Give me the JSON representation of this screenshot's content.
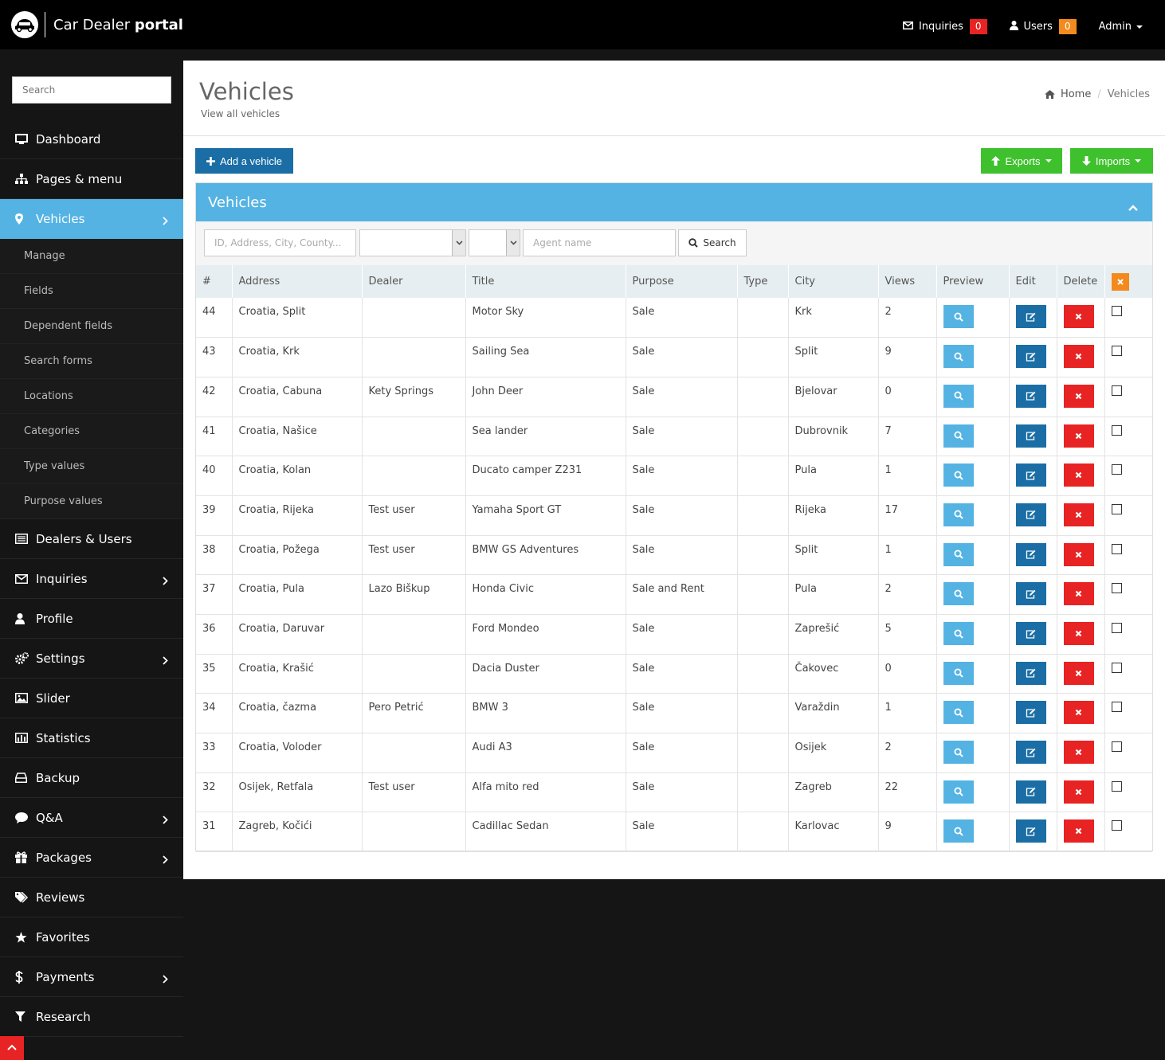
{
  "brand": {
    "name_regular": "Car Dealer ",
    "name_bold": "portal"
  },
  "topnav": {
    "inquiries_label": "Inquiries",
    "inquiries_count": "0",
    "users_label": "Users",
    "users_count": "0",
    "admin_label": "Admin"
  },
  "sidebar": {
    "search_placeholder": "Search",
    "items": [
      {
        "label": "Dashboard",
        "icon": "monitor-icon"
      },
      {
        "label": "Pages & menu",
        "icon": "sitemap-icon"
      },
      {
        "label": "Vehicles",
        "icon": "map-marker-icon",
        "active": true
      },
      {
        "label": "Dealers & Users",
        "icon": "list-icon"
      },
      {
        "label": "Inquiries",
        "icon": "envelope-icon"
      },
      {
        "label": "Profile",
        "icon": "user-icon"
      },
      {
        "label": "Settings",
        "icon": "cogs-icon"
      },
      {
        "label": "Slider",
        "icon": "image-icon"
      },
      {
        "label": "Statistics",
        "icon": "bar-chart-icon"
      },
      {
        "label": "Backup",
        "icon": "hdd-icon"
      },
      {
        "label": "Q&A",
        "icon": "comment-icon"
      },
      {
        "label": "Packages",
        "icon": "gift-icon"
      },
      {
        "label": "Reviews",
        "icon": "tags-icon"
      },
      {
        "label": "Favorites",
        "icon": "star-icon"
      },
      {
        "label": "Payments",
        "icon": "dollar-icon"
      },
      {
        "label": "Research",
        "icon": "filter-icon"
      }
    ],
    "sub_items": [
      "Manage",
      "Fields",
      "Dependent fields",
      "Search forms",
      "Locations",
      "Categories",
      "Type values",
      "Purpose values"
    ]
  },
  "page": {
    "title": "Vehicles",
    "subtitle": "View all vehicles",
    "breadcrumb_home": "Home",
    "breadcrumb_sep": "/",
    "breadcrumb_current": "Vehicles"
  },
  "toolbar": {
    "add_label": "Add a vehicle",
    "exports_label": "Exports",
    "imports_label": "Imports"
  },
  "panel": {
    "title": "Vehicles",
    "filter_placeholder": "ID, Address, City, County...",
    "agent_placeholder": "Agent name",
    "search_label": "Search"
  },
  "table": {
    "headers": [
      "#",
      "Address",
      "Dealer",
      "Title",
      "Purpose",
      "Type",
      "City",
      "Views",
      "Preview",
      "Edit",
      "Delete"
    ],
    "rows": [
      {
        "id": "44",
        "address": "Croatia, Split",
        "dealer": "",
        "title": "Motor Sky",
        "purpose": "Sale",
        "type": "",
        "city": "Krk",
        "views": "2"
      },
      {
        "id": "43",
        "address": "Croatia, Krk",
        "dealer": "",
        "title": "Sailing Sea",
        "purpose": "Sale",
        "type": "",
        "city": "Split",
        "views": "9"
      },
      {
        "id": "42",
        "address": "Croatia, Cabuna",
        "dealer": "Kety Springs",
        "title": "John Deer",
        "purpose": "Sale",
        "type": "",
        "city": "Bjelovar",
        "views": "0"
      },
      {
        "id": "41",
        "address": "Croatia, Našice",
        "dealer": "",
        "title": "Sea lander",
        "purpose": "Sale",
        "type": "",
        "city": "Dubrovnik",
        "views": "7"
      },
      {
        "id": "40",
        "address": "Croatia, Kolan",
        "dealer": "",
        "title": "Ducato camper Z231",
        "purpose": "Sale",
        "type": "",
        "city": "Pula",
        "views": "1"
      },
      {
        "id": "39",
        "address": "Croatia, Rijeka",
        "dealer": "Test user",
        "title": "Yamaha Sport GT",
        "purpose": "Sale",
        "type": "",
        "city": "Rijeka",
        "views": "17"
      },
      {
        "id": "38",
        "address": "Croatia, Požega",
        "dealer": "Test user",
        "title": "BMW GS Adventures",
        "purpose": "Sale",
        "type": "",
        "city": "Split",
        "views": "1"
      },
      {
        "id": "37",
        "address": "Croatia, Pula",
        "dealer": "Lazo Biškup",
        "title": "Honda Civic",
        "purpose": "Sale and Rent",
        "type": "",
        "city": "Pula",
        "views": "2"
      },
      {
        "id": "36",
        "address": "Croatia, Daruvar",
        "dealer": "",
        "title": "Ford Mondeo",
        "purpose": "Sale",
        "type": "",
        "city": "Zaprešić",
        "views": "5"
      },
      {
        "id": "35",
        "address": "Croatia, Krašić",
        "dealer": "",
        "title": "Dacia Duster",
        "purpose": "Sale",
        "type": "",
        "city": "Čakovec",
        "views": "0"
      },
      {
        "id": "34",
        "address": "Croatia, čazma",
        "dealer": "Pero Petrić",
        "title": "BMW 3",
        "purpose": "Sale",
        "type": "",
        "city": "Varaždin",
        "views": "1"
      },
      {
        "id": "33",
        "address": "Croatia, Voloder",
        "dealer": "",
        "title": "Audi A3",
        "purpose": "Sale",
        "type": "",
        "city": "Osijek",
        "views": "2"
      },
      {
        "id": "32",
        "address": "Osijek, Retfala",
        "dealer": "Test user",
        "title": "Alfa mito red",
        "purpose": "Sale",
        "type": "",
        "city": "Zagreb",
        "views": "22"
      },
      {
        "id": "31",
        "address": "Zagreb, Kočići",
        "dealer": "",
        "title": "Cadillac Sedan",
        "purpose": "Sale",
        "type": "",
        "city": "Karlovac",
        "views": "9"
      }
    ]
  },
  "colors": {
    "accent": "#54b3e3",
    "primary": "#1a6ea5",
    "success": "#3fc12e",
    "danger": "#e82323",
    "warning": "#f38a1d"
  }
}
